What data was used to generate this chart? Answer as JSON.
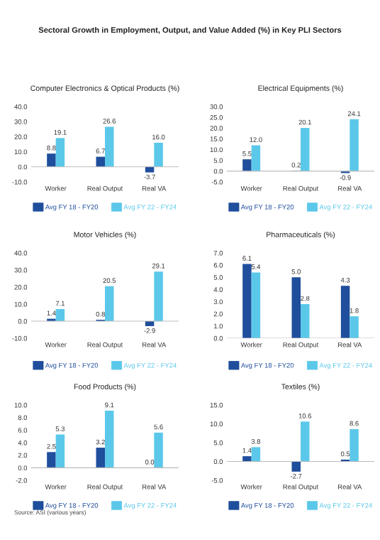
{
  "chart_data": [
    {
      "type": "bar",
      "title": "Computer Electronics & Optical Products (%)",
      "annotations": [
        "Sectoral Growth in Employment, Output, and Value Added (%) in Key PLI Sectors"
      ],
      "categories": [
        "Worker",
        "Real Output",
        "Real VA"
      ],
      "series": [
        {
          "name": "Avg FY 18 - FY20",
          "color": "#1f4e9c",
          "values": [
            8.8,
            6.7,
            -3.7
          ],
          "value_labels": [
            "8.8",
            "6.7",
            "-3.7"
          ]
        },
        {
          "name": "Avg FY 22 - FY24",
          "color": "#5bc8ea",
          "values": [
            19.1,
            26.6,
            16.0
          ],
          "value_labels": [
            "19.1",
            "26.6",
            "16.0"
          ]
        }
      ],
      "ylim": [
        -10,
        40
      ],
      "yticks": [
        {
          "value": -10,
          "label": "-10.0"
        },
        {
          "value": 0,
          "label": "0.0"
        },
        {
          "value": 10,
          "label": "10.0"
        },
        {
          "value": 20,
          "label": "20.0"
        },
        {
          "value": 30,
          "label": "30.0"
        },
        {
          "value": 40,
          "label": "40.0"
        }
      ],
      "legend": "bottom"
    },
    {
      "type": "bar",
      "title": "Electrical Equipments (%)",
      "categories": [
        "Worker",
        "Real Output",
        "Real VA"
      ],
      "series": [
        {
          "name": "Avg FY 18 - FY20",
          "color": "#1f4e9c",
          "values": [
            5.5,
            0.2,
            -0.9
          ],
          "value_labels": [
            "5.5",
            "0.2",
            "-0.9"
          ]
        },
        {
          "name": "Avg FY 22 - FY24",
          "color": "#5bc8ea",
          "values": [
            12.0,
            20.1,
            24.1
          ],
          "value_labels": [
            "12.0",
            "20.1",
            "24.1"
          ]
        }
      ],
      "ylim": [
        -5,
        30
      ],
      "yticks": [
        {
          "value": -5,
          "label": "-5.0"
        },
        {
          "value": 0,
          "label": "0.0"
        },
        {
          "value": 5,
          "label": "5.0"
        },
        {
          "value": 10,
          "label": "10.0"
        },
        {
          "value": 15,
          "label": "15.0"
        },
        {
          "value": 20,
          "label": "20.0"
        },
        {
          "value": 25,
          "label": "25.0"
        },
        {
          "value": 30,
          "label": "30.0"
        }
      ],
      "legend": "bottom"
    },
    {
      "type": "bar",
      "title": "Motor Vehicles (%)",
      "categories": [
        "Worker",
        "Real Output",
        "Real VA"
      ],
      "series": [
        {
          "name": "Avg FY 18 - FY20",
          "color": "#1f4e9c",
          "values": [
            1.4,
            0.8,
            -2.9
          ],
          "value_labels": [
            "1.4",
            "0.8",
            "-2.9"
          ]
        },
        {
          "name": "Avg FY 22 - FY24",
          "color": "#5bc8ea",
          "values": [
            7.1,
            20.5,
            29.1
          ],
          "value_labels": [
            "7.1",
            "20.5",
            "29.1"
          ]
        }
      ],
      "ylim": [
        -10,
        40
      ],
      "yticks": [
        {
          "value": -10,
          "label": "-10.0"
        },
        {
          "value": 0,
          "label": "0.0"
        },
        {
          "value": 10,
          "label": "10.0"
        },
        {
          "value": 20,
          "label": "20.0"
        },
        {
          "value": 30,
          "label": "30.0"
        },
        {
          "value": 40,
          "label": "40.0"
        }
      ],
      "legend": "bottom"
    },
    {
      "type": "bar",
      "title": "Pharmaceuticals (%)",
      "categories": [
        "Worker",
        "Real Output",
        "Real VA"
      ],
      "series": [
        {
          "name": "Avg FY 18 - FY20",
          "color": "#1f4e9c",
          "values": [
            6.1,
            5.0,
            4.3
          ],
          "value_labels": [
            "6.1",
            "5.0",
            "4.3"
          ]
        },
        {
          "name": "Avg FY 22 - FY24",
          "color": "#5bc8ea",
          "values": [
            5.4,
            2.8,
            1.8
          ],
          "value_labels": [
            "5.4",
            "2.8",
            "1.8"
          ]
        }
      ],
      "ylim": [
        0,
        7
      ],
      "yticks": [
        {
          "value": 0,
          "label": "0.0"
        },
        {
          "value": 1,
          "label": "1.0"
        },
        {
          "value": 2,
          "label": "2.0"
        },
        {
          "value": 3,
          "label": "3.0"
        },
        {
          "value": 4,
          "label": "4.0"
        },
        {
          "value": 5,
          "label": "5.0"
        },
        {
          "value": 6,
          "label": "6.0"
        },
        {
          "value": 7,
          "label": "7.0"
        }
      ],
      "legend": "bottom"
    },
    {
      "type": "bar",
      "title": "Food Products (%)",
      "annotations": [
        "Source: ASI (various years)"
      ],
      "categories": [
        "Worker",
        "Real Output",
        "Real VA"
      ],
      "series": [
        {
          "name": "Avg FY 18 - FY20",
          "color": "#1f4e9c",
          "values": [
            2.5,
            3.2,
            0.0
          ],
          "value_labels": [
            "2.5",
            "3.2",
            "0.0"
          ]
        },
        {
          "name": "Avg FY 22 - FY24",
          "color": "#5bc8ea",
          "values": [
            5.3,
            9.1,
            5.6
          ],
          "value_labels": [
            "5.3",
            "9.1",
            "5.6"
          ]
        }
      ],
      "ylim": [
        -2,
        10
      ],
      "yticks": [
        {
          "value": -2,
          "label": "-2.0"
        },
        {
          "value": 0,
          "label": "0.0"
        },
        {
          "value": 2,
          "label": "2.0"
        },
        {
          "value": 4,
          "label": "4.0"
        },
        {
          "value": 6,
          "label": "6.0"
        },
        {
          "value": 8,
          "label": "8.0"
        },
        {
          "value": 10,
          "label": "10.0"
        }
      ],
      "legend": "bottom"
    },
    {
      "type": "bar",
      "title": "Textiles (%)",
      "categories": [
        "Worker",
        "Real Output",
        "Real VA"
      ],
      "series": [
        {
          "name": "Avg FY 18 - FY20",
          "color": "#1f4e9c",
          "values": [
            1.4,
            -2.7,
            0.5
          ],
          "value_labels": [
            "1.4",
            "-2.7",
            "0.5"
          ]
        },
        {
          "name": "Avg FY 22 - FY24",
          "color": "#5bc8ea",
          "values": [
            3.8,
            10.6,
            8.6
          ],
          "value_labels": [
            "3.8",
            "10.6",
            "8.6"
          ]
        }
      ],
      "ylim": [
        -5,
        15
      ],
      "yticks": [
        {
          "value": -5,
          "label": "-5.0"
        },
        {
          "value": 0,
          "label": "0.0"
        },
        {
          "value": 5,
          "label": "5.0"
        },
        {
          "value": 10,
          "label": "10.0"
        },
        {
          "value": 15,
          "label": "15.0"
        }
      ],
      "legend": "bottom"
    }
  ]
}
